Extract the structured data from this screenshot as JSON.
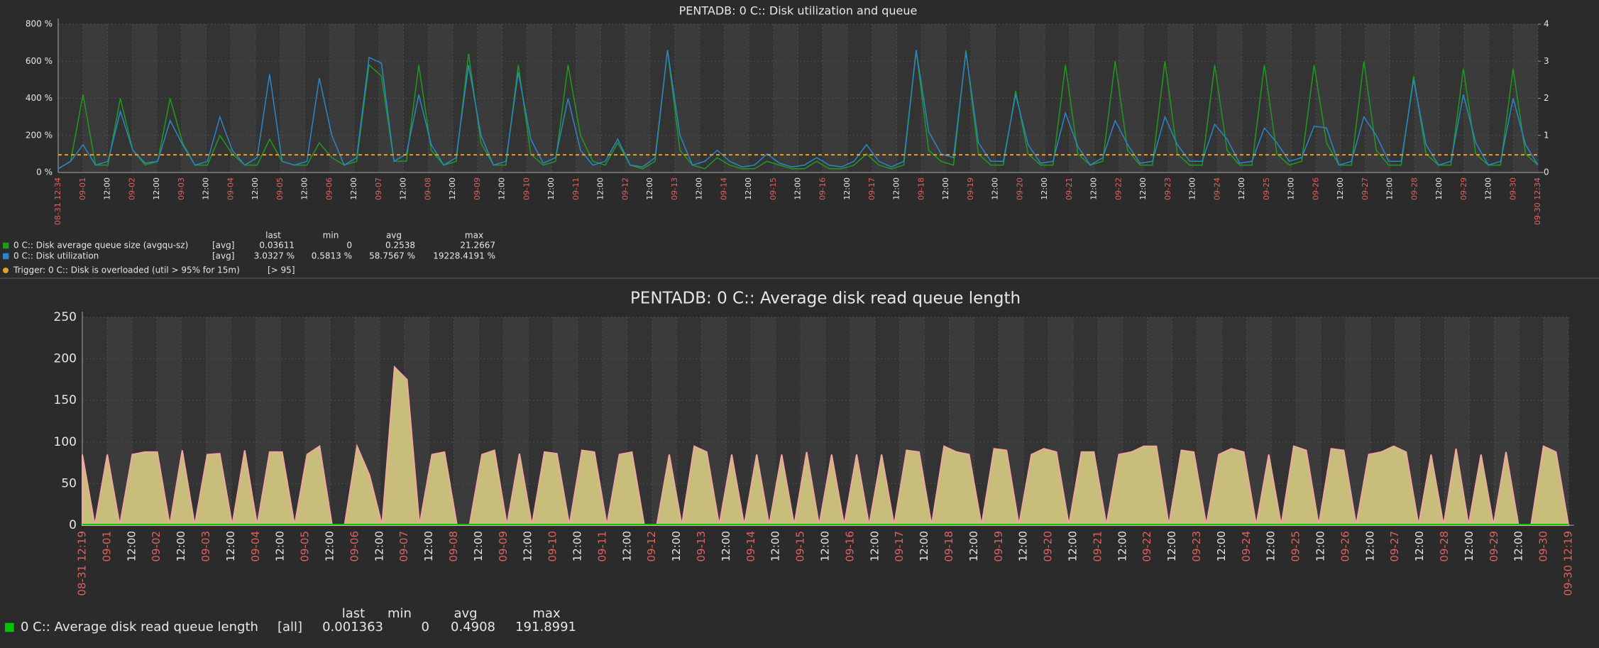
{
  "chart_data": [
    {
      "type": "line",
      "title": "PENTADB: 0 C:: Disk utilization and queue",
      "x_labels": [
        "08-31 12:34",
        "09-01",
        "12:00",
        "09-02",
        "12:00",
        "09-03",
        "12:00",
        "09-04",
        "12:00",
        "09-05",
        "12:00",
        "09-06",
        "12:00",
        "09-07",
        "12:00",
        "09-08",
        "12:00",
        "09-09",
        "12:00",
        "09-10",
        "12:00",
        "09-11",
        "12:00",
        "09-12",
        "12:00",
        "09-13",
        "12:00",
        "09-14",
        "12:00",
        "09-15",
        "12:00",
        "09-16",
        "12:00",
        "09-17",
        "12:00",
        "09-18",
        "12:00",
        "09-19",
        "12:00",
        "09-20",
        "12:00",
        "09-21",
        "12:00",
        "09-22",
        "12:00",
        "09-23",
        "12:00",
        "09-24",
        "12:00",
        "09-25",
        "12:00",
        "09-26",
        "12:00",
        "09-27",
        "12:00",
        "09-28",
        "12:00",
        "09-29",
        "12:00",
        "09-30",
        "09-30 12:34"
      ],
      "ylim": [
        0,
        800
      ],
      "yticks": [
        {
          "value": 0,
          "label": "0 %"
        },
        {
          "value": 200,
          "label": "200 %"
        },
        {
          "value": 400,
          "label": "400 %"
        },
        {
          "value": 600,
          "label": "600 %"
        },
        {
          "value": 800,
          "label": "800 %"
        }
      ],
      "y2lim": [
        0,
        4
      ],
      "y2ticks": [
        0,
        1,
        2,
        3,
        4
      ],
      "grid": true,
      "legend_headers": [
        "last",
        "min",
        "avg",
        "max"
      ],
      "series": [
        {
          "name": "0 C:: Disk average queue size (avgqu-sz)",
          "color": "#1f9a1f",
          "axis": "y2",
          "func": "[avg]",
          "last": "0.03611",
          "min": "0",
          "avg": "0.2538",
          "max": "21.2667",
          "values": [
            0.1,
            0.3,
            2.1,
            0.2,
            0.2,
            2.0,
            0.6,
            0.2,
            0.3,
            2.0,
            0.8,
            0.2,
            0.2,
            1.0,
            0.5,
            0.2,
            0.2,
            0.9,
            0.3,
            0.2,
            0.2,
            0.8,
            0.4,
            0.2,
            0.3,
            2.9,
            2.6,
            0.3,
            0.3,
            2.9,
            0.6,
            0.2,
            0.3,
            3.2,
            0.8,
            0.2,
            0.2,
            2.9,
            0.5,
            0.2,
            0.3,
            2.9,
            1.0,
            0.3,
            0.2,
            0.8,
            0.2,
            0.1,
            0.3,
            3.3,
            0.6,
            0.2,
            0.1,
            0.4,
            0.2,
            0.1,
            0.1,
            0.3,
            0.2,
            0.1,
            0.1,
            0.3,
            0.1,
            0.1,
            0.2,
            0.5,
            0.2,
            0.1,
            0.2,
            3.3,
            0.6,
            0.3,
            0.2,
            3.3,
            0.5,
            0.2,
            0.2,
            2.2,
            0.5,
            0.2,
            0.2,
            2.9,
            0.5,
            0.2,
            0.3,
            3.0,
            0.6,
            0.2,
            0.2,
            3.0,
            0.5,
            0.2,
            0.2,
            2.9,
            0.6,
            0.2,
            0.2,
            2.9,
            0.5,
            0.2,
            0.3,
            2.9,
            0.8,
            0.2,
            0.2,
            3.0,
            0.6,
            0.2,
            0.2,
            2.6,
            0.5,
            0.2,
            0.2,
            2.8,
            0.5,
            0.2,
            0.2,
            2.8,
            0.5,
            0.2
          ]
        },
        {
          "name": "0 C:: Disk utilization",
          "color": "#2a86c8",
          "func": "[avg]",
          "last": "3.0327 %",
          "min": "0.5813 %",
          "avg": "58.7567 %",
          "max": "19228.4191 %",
          "values": [
            20,
            60,
            150,
            40,
            60,
            330,
            120,
            50,
            60,
            280,
            150,
            40,
            60,
            300,
            120,
            40,
            80,
            530,
            60,
            40,
            60,
            510,
            200,
            40,
            80,
            620,
            590,
            60,
            100,
            420,
            150,
            40,
            80,
            580,
            200,
            40,
            60,
            540,
            180,
            50,
            80,
            400,
            120,
            40,
            60,
            180,
            40,
            30,
            80,
            660,
            200,
            40,
            60,
            120,
            60,
            30,
            40,
            100,
            50,
            30,
            40,
            80,
            40,
            30,
            60,
            150,
            60,
            30,
            60,
            660,
            220,
            100,
            80,
            650,
            160,
            60,
            60,
            420,
            150,
            50,
            60,
            320,
            140,
            40,
            80,
            280,
            150,
            50,
            60,
            300,
            150,
            60,
            60,
            260,
            180,
            50,
            60,
            240,
            160,
            60,
            80,
            250,
            240,
            40,
            60,
            300,
            200,
            60,
            60,
            500,
            150,
            40,
            60,
            420,
            160,
            40,
            60,
            400,
            150,
            40
          ]
        }
      ],
      "trigger": {
        "label": "Trigger: 0 C:: Disk is overloaded (util > 95% for 15m)",
        "condition": "[> 95]",
        "value": 95,
        "color": "#e8a020"
      }
    },
    {
      "type": "area",
      "title": "PENTADB: 0 C:: Average disk read queue length",
      "x_labels": [
        "08-31 12:19",
        "09-01",
        "12:00",
        "09-02",
        "12:00",
        "09-03",
        "12:00",
        "09-04",
        "12:00",
        "09-05",
        "12:00",
        "09-06",
        "12:00",
        "09-07",
        "12:00",
        "09-08",
        "12:00",
        "09-09",
        "12:00",
        "09-10",
        "12:00",
        "09-11",
        "12:00",
        "09-12",
        "12:00",
        "09-13",
        "12:00",
        "09-14",
        "12:00",
        "09-15",
        "12:00",
        "09-16",
        "12:00",
        "09-17",
        "12:00",
        "09-18",
        "12:00",
        "09-19",
        "12:00",
        "09-20",
        "12:00",
        "09-21",
        "12:00",
        "09-22",
        "12:00",
        "09-23",
        "12:00",
        "09-24",
        "12:00",
        "09-25",
        "12:00",
        "09-26",
        "12:00",
        "09-27",
        "12:00",
        "09-28",
        "12:00",
        "09-29",
        "12:00",
        "09-30",
        "09-30 12:19"
      ],
      "ylim": [
        0,
        250
      ],
      "yticks": [
        0,
        50,
        100,
        150,
        200,
        250
      ],
      "grid": true,
      "legend_headers": [
        "last",
        "min",
        "avg",
        "max"
      ],
      "series": [
        {
          "name": "0 C:: Average disk read queue length",
          "color": "#00c800",
          "area_color": "#c8bd7a",
          "line_color": "#f0a8a0",
          "func": "[all]",
          "last": "0.001363",
          "min": "0",
          "avg": "0.4908",
          "max": "191.8991",
          "values": [
            85,
            0,
            85,
            0,
            85,
            88,
            88,
            0,
            90,
            0,
            85,
            86,
            0,
            90,
            0,
            88,
            88,
            0,
            85,
            95,
            0,
            0,
            95,
            60,
            0,
            190,
            175,
            0,
            85,
            88,
            0,
            0,
            85,
            90,
            0,
            86,
            0,
            88,
            86,
            0,
            90,
            88,
            0,
            85,
            88,
            0,
            0,
            85,
            0,
            95,
            88,
            0,
            85,
            0,
            85,
            0,
            85,
            0,
            88,
            0,
            85,
            0,
            85,
            0,
            85,
            0,
            90,
            88,
            0,
            95,
            88,
            85,
            0,
            92,
            90,
            0,
            85,
            92,
            88,
            0,
            88,
            88,
            0,
            85,
            88,
            95,
            95,
            0,
            90,
            88,
            0,
            85,
            92,
            88,
            0,
            85,
            0,
            95,
            90,
            0,
            92,
            90,
            0,
            85,
            88,
            95,
            88,
            0,
            85,
            0,
            92,
            0,
            85,
            0,
            88,
            0,
            0,
            95,
            88,
            0
          ]
        }
      ]
    }
  ]
}
